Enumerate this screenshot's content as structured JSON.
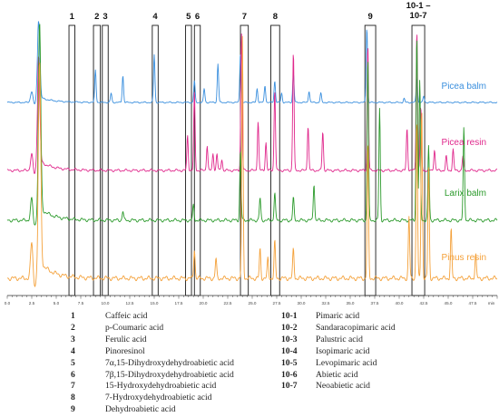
{
  "chart_data": {
    "type": "line",
    "title": "",
    "xlabel": "",
    "ylabel": "",
    "x_unit": "min",
    "xlim": [
      0,
      50
    ],
    "x_ticks": [
      "0.0",
      "2.5",
      "5.0",
      "7.5",
      "10.0",
      "12.5",
      "15.0",
      "17.5",
      "20.0",
      "22.5",
      "25.0",
      "27.5",
      "30.0",
      "32.5",
      "35.0",
      "37.5",
      "40.0",
      "42.5",
      "45.0",
      "47.5"
    ],
    "x_tick_values": [
      0,
      2.5,
      5,
      7.5,
      10,
      12.5,
      15,
      17.5,
      20,
      22.5,
      25,
      27.5,
      30,
      32.5,
      35,
      37.5,
      40,
      42.5,
      45,
      47.5
    ],
    "grid": false,
    "legend": "right, beside each trace",
    "marker_windows": [
      {
        "label": "1",
        "x": [
          6.3,
          6.9
        ]
      },
      {
        "label": "2",
        "x": [
          8.8,
          9.5
        ]
      },
      {
        "label": "3",
        "x": [
          9.7,
          10.3
        ]
      },
      {
        "label": "4",
        "x": [
          14.8,
          15.4
        ]
      },
      {
        "label": "5",
        "x": [
          18.2,
          18.8
        ]
      },
      {
        "label": "6",
        "x": [
          19.1,
          19.7
        ]
      },
      {
        "label": "7",
        "x": [
          23.8,
          24.6
        ]
      },
      {
        "label": "8",
        "x": [
          26.9,
          27.8
        ]
      },
      {
        "label": "9",
        "x": [
          36.5,
          37.6
        ]
      },
      {
        "label": "10-1 –\n10-7",
        "x": [
          41.3,
          42.6
        ]
      }
    ],
    "series": [
      {
        "name": "Picea balm",
        "color": "#3a8fde",
        "peaks": [
          [
            2.5,
            0.15
          ],
          [
            3.2,
            1.0
          ],
          [
            9.0,
            0.42
          ],
          [
            10.6,
            0.12
          ],
          [
            11.8,
            0.35
          ],
          [
            15.0,
            0.62
          ],
          [
            19.1,
            0.28
          ],
          [
            20.1,
            0.18
          ],
          [
            21.5,
            0.5
          ],
          [
            23.8,
            0.65
          ],
          [
            25.5,
            0.18
          ],
          [
            26.3,
            0.22
          ],
          [
            27.3,
            0.28
          ],
          [
            28.0,
            0.12
          ],
          [
            29.2,
            0.38
          ],
          [
            30.8,
            0.15
          ],
          [
            32.0,
            0.12
          ],
          [
            36.7,
            0.98
          ],
          [
            40.5,
            0.05
          ],
          [
            41.8,
            0.32
          ],
          [
            42.5,
            0.08
          ]
        ]
      },
      {
        "name": "Picea resin",
        "color": "#e0288c",
        "peaks": [
          [
            2.5,
            0.12
          ],
          [
            3.2,
            0.75
          ],
          [
            18.4,
            0.25
          ],
          [
            19.1,
            0.55
          ],
          [
            20.4,
            0.18
          ],
          [
            21.0,
            0.12
          ],
          [
            21.4,
            0.12
          ],
          [
            21.9,
            0.08
          ],
          [
            23.9,
            0.98
          ],
          [
            25.6,
            0.35
          ],
          [
            26.4,
            0.2
          ],
          [
            27.3,
            0.58
          ],
          [
            29.2,
            0.85
          ],
          [
            30.7,
            0.32
          ],
          [
            32.2,
            0.28
          ],
          [
            36.8,
            0.9
          ],
          [
            40.8,
            0.3
          ],
          [
            41.8,
            1.0
          ],
          [
            42.2,
            0.45
          ],
          [
            43.6,
            0.15
          ],
          [
            44.8,
            0.1
          ],
          [
            45.5,
            0.15
          ],
          [
            46.5,
            0.1
          ]
        ]
      },
      {
        "name": "Larix balm",
        "color": "#2b9a2b",
        "peaks": [
          [
            2.5,
            0.12
          ],
          [
            3.3,
            1.0
          ],
          [
            11.8,
            0.05
          ],
          [
            19.0,
            0.08
          ],
          [
            23.8,
            0.38
          ],
          [
            25.8,
            0.12
          ],
          [
            27.3,
            0.15
          ],
          [
            29.2,
            0.12
          ],
          [
            31.3,
            0.2
          ],
          [
            36.8,
            0.88
          ],
          [
            38.0,
            0.6
          ],
          [
            41.8,
            1.0
          ],
          [
            42.1,
            0.75
          ],
          [
            43.0,
            0.4
          ],
          [
            46.6,
            0.5
          ]
        ]
      },
      {
        "name": "Pinus resin",
        "color": "#f4a13a",
        "peaks": [
          [
            2.5,
            0.15
          ],
          [
            3.3,
            0.82
          ],
          [
            19.1,
            0.12
          ],
          [
            21.3,
            0.08
          ],
          [
            24.0,
            0.98
          ],
          [
            25.8,
            0.12
          ],
          [
            26.6,
            0.08
          ],
          [
            27.3,
            0.15
          ],
          [
            29.2,
            0.12
          ],
          [
            36.8,
            0.55
          ],
          [
            41.0,
            0.25
          ],
          [
            41.8,
            0.65
          ],
          [
            42.3,
            0.7
          ],
          [
            43.0,
            0.45
          ],
          [
            45.3,
            0.2
          ],
          [
            47.8,
            0.1
          ]
        ]
      }
    ]
  },
  "legend": {
    "left": [
      {
        "num": "1",
        "name": "Caffeic acid"
      },
      {
        "num": "2",
        "name": "p-Coumaric acid"
      },
      {
        "num": "3",
        "name": "Ferulic acid"
      },
      {
        "num": "4",
        "name": "Pinoresinol"
      },
      {
        "num": "5",
        "name": "7α,15-Dihydroxydehydroabietic acid"
      },
      {
        "num": "6",
        "name": "7β,15-Dihydroxydehydroabietic acid"
      },
      {
        "num": "7",
        "name": "15-Hydroxydehydroabietic acid"
      },
      {
        "num": "8",
        "name": "7-Hydroxydehydroabietic acid"
      },
      {
        "num": "9",
        "name": "Dehydroabietic acid"
      }
    ],
    "right": [
      {
        "num": "10-1",
        "name": "Pimaric acid"
      },
      {
        "num": "10-2",
        "name": "Sandaracopimaric acid"
      },
      {
        "num": "10-3",
        "name": "Palustric acid"
      },
      {
        "num": "10-4",
        "name": "Isopimaric acid"
      },
      {
        "num": "10-5",
        "name": "Levopimaric acid"
      },
      {
        "num": "10-6",
        "name": "Abietic acid"
      },
      {
        "num": "10-7",
        "name": "Neoabietic acid"
      }
    ]
  }
}
